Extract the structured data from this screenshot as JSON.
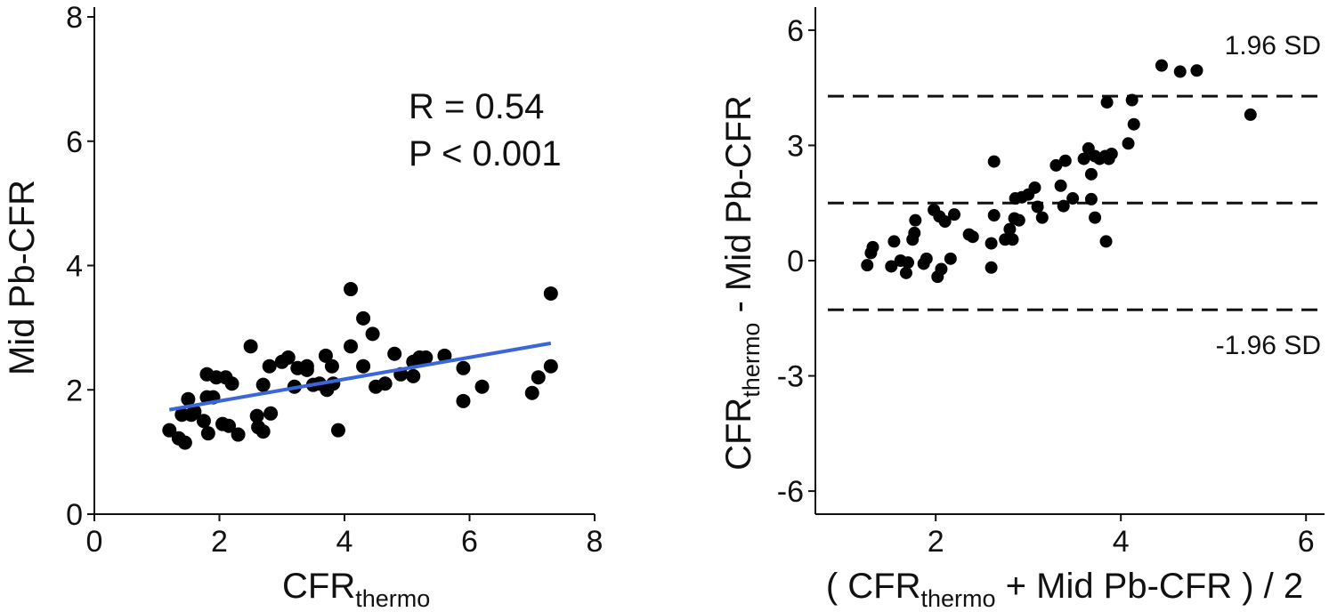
{
  "chart_data": [
    {
      "type": "scatter",
      "title": "",
      "xlabel": "CFR",
      "xlabel_sub": "thermo",
      "ylabel": "Mid Pb-CFR",
      "xlim": [
        0,
        8
      ],
      "ylim": [
        0,
        8
      ],
      "xticks": [
        0,
        2,
        4,
        6,
        8
      ],
      "yticks": [
        0,
        2,
        4,
        6,
        8
      ],
      "xtick_labels": [
        "0",
        "2",
        "4",
        "6",
        "8"
      ],
      "ytick_labels": [
        "0",
        "2",
        "4",
        "6",
        "8"
      ],
      "grid": false,
      "annotations": [
        "R = 0.54",
        "P < 0.001"
      ],
      "regression": {
        "x": [
          1.2,
          7.3
        ],
        "y": [
          1.68,
          2.75
        ],
        "color": "#3a66d9"
      },
      "points": [
        [
          1.2,
          1.35
        ],
        [
          1.35,
          1.22
        ],
        [
          1.4,
          1.6
        ],
        [
          1.45,
          1.15
        ],
        [
          1.5,
          1.85
        ],
        [
          1.55,
          1.6
        ],
        [
          1.6,
          1.65
        ],
        [
          1.75,
          1.5
        ],
        [
          1.8,
          2.25
        ],
        [
          1.8,
          1.88
        ],
        [
          1.82,
          1.3
        ],
        [
          1.9,
          1.88
        ],
        [
          1.95,
          2.2
        ],
        [
          2.05,
          1.45
        ],
        [
          2.1,
          2.2
        ],
        [
          2.15,
          1.42
        ],
        [
          2.2,
          2.1
        ],
        [
          2.3,
          1.28
        ],
        [
          2.5,
          2.7
        ],
        [
          2.6,
          1.58
        ],
        [
          2.62,
          1.4
        ],
        [
          2.7,
          2.08
        ],
        [
          2.7,
          1.33
        ],
        [
          2.8,
          2.38
        ],
        [
          2.82,
          1.62
        ],
        [
          3.0,
          2.45
        ],
        [
          3.1,
          2.52
        ],
        [
          3.2,
          2.05
        ],
        [
          3.25,
          2.35
        ],
        [
          3.4,
          2.32
        ],
        [
          3.4,
          2.38
        ],
        [
          3.5,
          2.08
        ],
        [
          3.6,
          2.1
        ],
        [
          3.7,
          2.55
        ],
        [
          3.72,
          2.0
        ],
        [
          3.8,
          2.38
        ],
        [
          3.82,
          2.1
        ],
        [
          3.9,
          1.35
        ],
        [
          4.1,
          3.62
        ],
        [
          4.1,
          2.7
        ],
        [
          4.3,
          3.15
        ],
        [
          4.3,
          2.38
        ],
        [
          4.45,
          2.9
        ],
        [
          4.5,
          2.05
        ],
        [
          4.65,
          2.1
        ],
        [
          4.8,
          2.58
        ],
        [
          4.9,
          2.25
        ],
        [
          5.1,
          2.45
        ],
        [
          5.1,
          2.22
        ],
        [
          5.2,
          2.52
        ],
        [
          5.3,
          2.52
        ],
        [
          5.6,
          2.55
        ],
        [
          5.9,
          2.35
        ],
        [
          5.9,
          1.82
        ],
        [
          6.2,
          2.05
        ],
        [
          7.0,
          1.95
        ],
        [
          7.1,
          2.2
        ],
        [
          7.3,
          2.38
        ],
        [
          7.3,
          3.55
        ]
      ]
    },
    {
      "type": "scatter",
      "title": "",
      "xlabel": "( CFR",
      "xlabel_sub": "thermo",
      "xlabel_tail": " + Mid Pb-CFR ) / 2",
      "ylabel": "CFR",
      "ylabel_sub": "thermo",
      "ylabel_tail": " - Mid Pb-CFR",
      "xlim": [
        0.7,
        6.2
      ],
      "ylim": [
        -6.6,
        6.6
      ],
      "xticks": [
        2,
        4,
        6
      ],
      "yticks": [
        -6,
        -3,
        0,
        3,
        6
      ],
      "xtick_labels": [
        "2",
        "4",
        "6"
      ],
      "ytick_labels": [
        "-6",
        "-3",
        "0",
        "3",
        "6"
      ],
      "grid": false,
      "hlines": [
        {
          "y": 4.28,
          "label": "1.96 SD"
        },
        {
          "y": 1.5,
          "label": ""
        },
        {
          "y": -1.28,
          "label": "-1.96 SD"
        }
      ],
      "points": [
        [
          1.26,
          -0.12
        ],
        [
          1.3,
          0.2
        ],
        [
          1.32,
          0.35
        ],
        [
          1.52,
          -0.15
        ],
        [
          1.55,
          0.5
        ],
        [
          1.62,
          0.0
        ],
        [
          1.68,
          -0.32
        ],
        [
          1.7,
          -0.05
        ],
        [
          1.75,
          0.55
        ],
        [
          1.77,
          0.72
        ],
        [
          1.78,
          1.05
        ],
        [
          1.87,
          -0.08
        ],
        [
          1.9,
          0.05
        ],
        [
          1.98,
          1.32
        ],
        [
          2.02,
          -0.42
        ],
        [
          2.04,
          1.15
        ],
        [
          2.06,
          -0.22
        ],
        [
          2.1,
          1.02
        ],
        [
          2.16,
          0.05
        ],
        [
          2.2,
          1.2
        ],
        [
          2.36,
          0.68
        ],
        [
          2.4,
          0.62
        ],
        [
          2.6,
          -0.18
        ],
        [
          2.6,
          0.45
        ],
        [
          2.63,
          1.18
        ],
        [
          2.63,
          2.58
        ],
        [
          2.75,
          0.55
        ],
        [
          2.8,
          0.82
        ],
        [
          2.83,
          0.55
        ],
        [
          2.85,
          1.1
        ],
        [
          2.86,
          1.62
        ],
        [
          2.9,
          1.05
        ],
        [
          2.93,
          1.65
        ],
        [
          3.0,
          1.72
        ],
        [
          3.07,
          1.9
        ],
        [
          3.1,
          1.4
        ],
        [
          3.15,
          1.12
        ],
        [
          3.3,
          2.48
        ],
        [
          3.35,
          1.95
        ],
        [
          3.38,
          1.42
        ],
        [
          3.4,
          2.6
        ],
        [
          3.48,
          1.62
        ],
        [
          3.6,
          2.65
        ],
        [
          3.65,
          2.92
        ],
        [
          3.68,
          1.6
        ],
        [
          3.68,
          2.25
        ],
        [
          3.72,
          2.72
        ],
        [
          3.72,
          1.12
        ],
        [
          3.77,
          2.65
        ],
        [
          3.83,
          2.72
        ],
        [
          3.84,
          0.5
        ],
        [
          3.85,
          4.12
        ],
        [
          3.87,
          2.65
        ],
        [
          3.9,
          2.78
        ],
        [
          4.08,
          3.05
        ],
        [
          4.12,
          4.18
        ],
        [
          4.14,
          3.55
        ],
        [
          4.44,
          5.08
        ],
        [
          4.64,
          4.92
        ],
        [
          4.82,
          4.95
        ],
        [
          5.4,
          3.8
        ]
      ]
    }
  ]
}
